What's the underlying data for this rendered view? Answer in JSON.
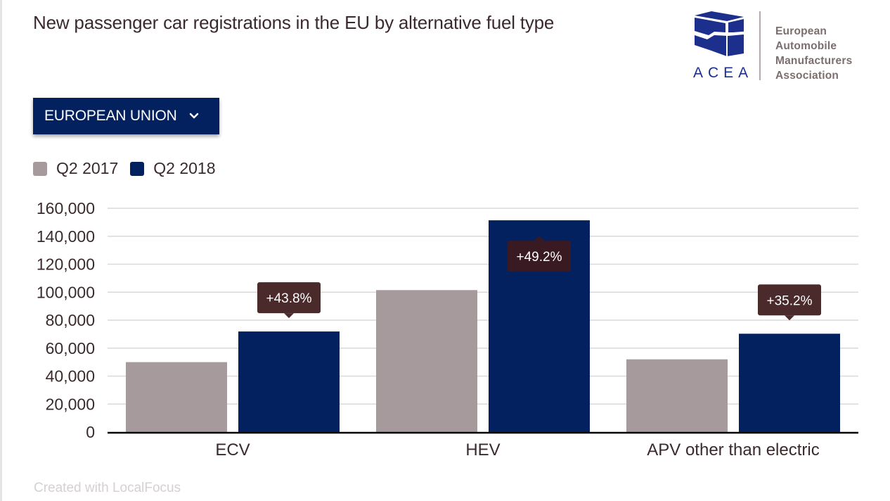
{
  "header": {
    "title": "New passenger car registrations in the EU by alternative fuel type"
  },
  "logo": {
    "acronym": "ACEA",
    "name_lines": [
      "European",
      "Automobile",
      "Manufacturers",
      "Association"
    ],
    "color": "#1c2f8c"
  },
  "region_selector": {
    "label": "EUROPEAN UNION",
    "icon": "chevron-down-icon"
  },
  "footer": {
    "credit": "Created with LocalFocus"
  },
  "colors": {
    "q2_2017": "#a69a9c",
    "q2_2018": "#03215f",
    "annotation_bg": "#4a2a2a",
    "annotation_bg_inside": "#3a1a22",
    "gridline": "#d9d9d9",
    "axis": "#000000"
  },
  "chart_data": {
    "type": "bar",
    "title": "New passenger car registrations in the EU by alternative fuel type",
    "xlabel": "",
    "ylabel": "",
    "categories": [
      "ECV",
      "HEV",
      "APV other than electric"
    ],
    "series": [
      {
        "name": "Q2 2017",
        "values": [
          50000,
          101500,
          52000
        ]
      },
      {
        "name": "Q2 2018",
        "values": [
          71900,
          151400,
          70300
        ]
      }
    ],
    "annotations": [
      {
        "category": "ECV",
        "series": "Q2 2018",
        "text": "+43.8%",
        "placement": "above"
      },
      {
        "category": "HEV",
        "series": "Q2 2018",
        "text": "+49.2%",
        "placement": "inside"
      },
      {
        "category": "APV other than electric",
        "series": "Q2 2018",
        "text": "+35.2%",
        "placement": "above"
      }
    ],
    "ylim": [
      0,
      160000
    ],
    "yticks": [
      0,
      20000,
      40000,
      60000,
      80000,
      100000,
      120000,
      140000,
      160000
    ],
    "ytick_labels": [
      "0",
      "20,000",
      "40,000",
      "60,000",
      "80,000",
      "100,000",
      "120,000",
      "140,000",
      "160,000"
    ],
    "grid": true,
    "legend": {
      "placement": "top-left",
      "entries": [
        "Q2 2017",
        "Q2 2018"
      ]
    }
  }
}
